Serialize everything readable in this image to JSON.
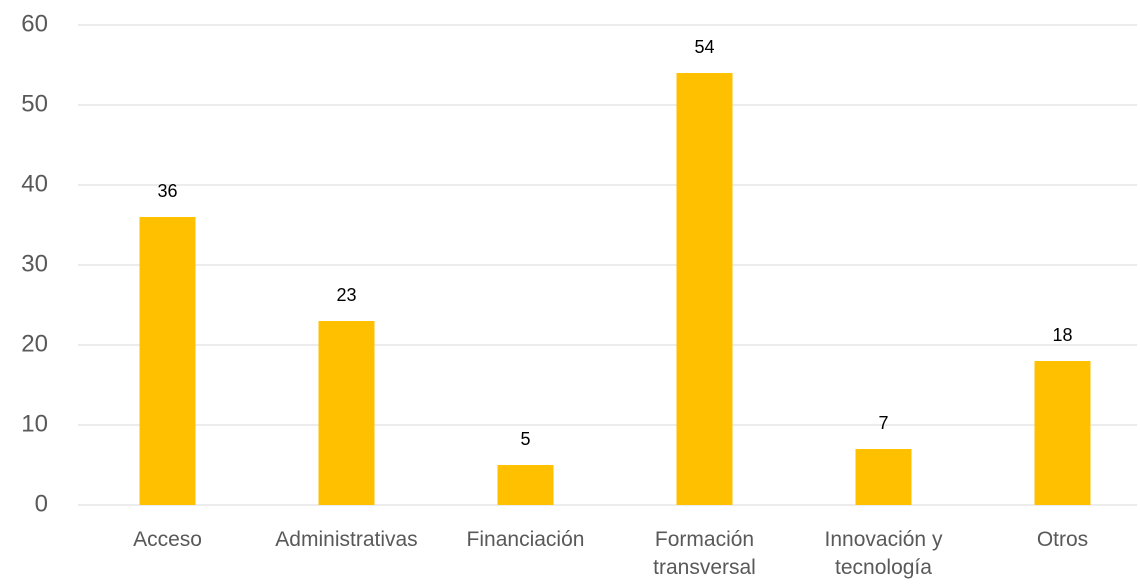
{
  "chart_data": {
    "type": "bar",
    "categories": [
      "Acceso",
      "Administrativas",
      "Financiación",
      "Formación transversal",
      "Innovación y tecnología",
      "Otros"
    ],
    "values": [
      36,
      23,
      5,
      54,
      7,
      18
    ],
    "color": "#ffc000",
    "ylim": [
      0,
      60
    ],
    "yticks": [
      0,
      10,
      20,
      30,
      40,
      50,
      60
    ],
    "grid": true
  }
}
